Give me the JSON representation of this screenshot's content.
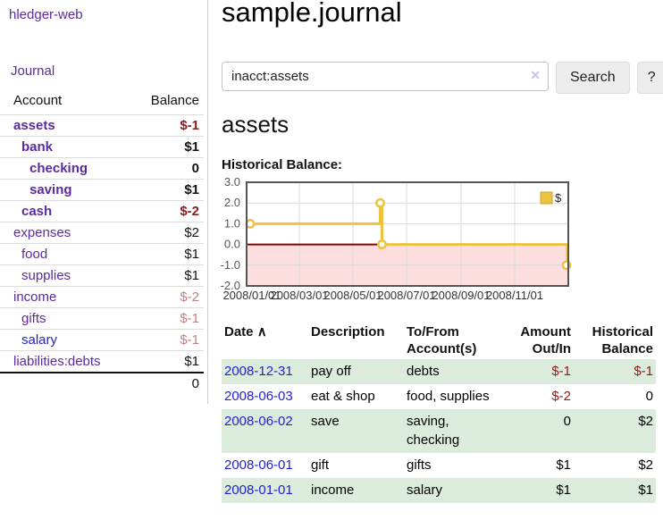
{
  "colors": {
    "link_purple": "#5b2a9d",
    "link_blue": "#2323cc",
    "negative_dark": "#8b1a1a",
    "negative_muted": "#c47e7e",
    "row_shade_green": "#dcecdc"
  },
  "sidebar": {
    "app_title": "hledger-web",
    "nav_journal": "Journal",
    "accounts": {
      "col_account": "Account",
      "col_balance": "Balance",
      "rows": [
        {
          "name": "assets",
          "indent": 0,
          "emph": true,
          "color": "purple",
          "balance": "$-1",
          "balance_color": "negdark"
        },
        {
          "name": "bank",
          "indent": 1,
          "emph": true,
          "color": "purple",
          "balance": "$1",
          "balance_color": "black"
        },
        {
          "name": "checking",
          "indent": 2,
          "emph": true,
          "color": "purple",
          "balance": "0",
          "balance_color": "black"
        },
        {
          "name": "saving",
          "indent": 2,
          "emph": true,
          "color": "purple",
          "balance": "$1",
          "balance_color": "black"
        },
        {
          "name": "cash",
          "indent": 1,
          "emph": true,
          "color": "purple",
          "balance": "$-2",
          "balance_color": "negdark"
        },
        {
          "name": "expenses",
          "indent": 0,
          "emph": false,
          "color": "purple",
          "balance": "$2",
          "balance_color": "black"
        },
        {
          "name": "food",
          "indent": 1,
          "emph": false,
          "color": "purple",
          "balance": "$1",
          "balance_color": "black"
        },
        {
          "name": "supplies",
          "indent": 1,
          "emph": false,
          "color": "purple",
          "balance": "$1",
          "balance_color": "black"
        },
        {
          "name": "income",
          "indent": 0,
          "emph": false,
          "color": "purple",
          "balance": "$-2",
          "balance_color": "negmuted"
        },
        {
          "name": "gifts",
          "indent": 1,
          "emph": false,
          "color": "purple",
          "balance": "$-1",
          "balance_color": "negmuted"
        },
        {
          "name": "salary",
          "indent": 1,
          "emph": false,
          "color": "blue",
          "balance": "$-1",
          "balance_color": "negmuted"
        },
        {
          "name": "liabilities:debts",
          "indent": 0,
          "emph": false,
          "color": "purple",
          "balance": "$1",
          "balance_color": "black"
        }
      ],
      "total": "0"
    }
  },
  "header": {
    "title": "sample.journal"
  },
  "search": {
    "value": "inacct:assets",
    "clear_icon": "✕",
    "search_button": "Search",
    "help_button": "?"
  },
  "account_page": {
    "heading": "assets",
    "chart_label": "Historical Balance:"
  },
  "chart_data": {
    "type": "line",
    "title": "Historical Balance:",
    "legend": [
      {
        "label": "$",
        "color": "#EDC240"
      }
    ],
    "x_start": "2008-01-01",
    "x_end": "2009-01-01",
    "xticks": [
      {
        "date": "2008-01-01",
        "label": "2008/01/01"
      },
      {
        "date": "2008-03-01",
        "label": "2008/03/01"
      },
      {
        "date": "2008-05-01",
        "label": "2008/05/01"
      },
      {
        "date": "2008-07-01",
        "label": "2008/07/01"
      },
      {
        "date": "2008-09-01",
        "label": "2008/09/01"
      },
      {
        "date": "2008-11-01",
        "label": "2008/11/01"
      }
    ],
    "yticks": [
      "3.0",
      "2.0",
      "1.0",
      "0.0",
      "-1.0",
      "-2.0"
    ],
    "ylim": [
      -2,
      3
    ],
    "series": [
      {
        "name": "$",
        "color": "#EDC240",
        "step": true,
        "points": [
          {
            "date": "2008-01-01",
            "value": 1
          },
          {
            "date": "2008-06-01",
            "value": 2
          },
          {
            "date": "2008-06-03",
            "value": 0
          },
          {
            "date": "2008-12-31",
            "value": -1
          }
        ]
      }
    ],
    "negative_fill": "#fcdede",
    "zero_line_color": "#8b0000",
    "grid_color": "#d9d9d9",
    "border_color": "#545454",
    "legend_box_border": "#c9a42e"
  },
  "transactions": {
    "sort_indicator": "∧",
    "columns": [
      {
        "label": "Date",
        "label2": ""
      },
      {
        "label": "Description",
        "label2": ""
      },
      {
        "label": "To/From",
        "label2": "Account(s)"
      },
      {
        "label": "Amount",
        "label2": "Out/In"
      },
      {
        "label": "Historical",
        "label2": "Balance"
      }
    ],
    "rows": [
      {
        "date": "2008-12-31",
        "description": "pay off",
        "to_from": "debts",
        "amount": "$-1",
        "amount_neg": true,
        "balance": "$-1",
        "balance_neg": true,
        "shaded": true
      },
      {
        "date": "2008-06-03",
        "description": "eat & shop",
        "to_from": "food, supplies",
        "amount": "$-2",
        "amount_neg": true,
        "balance": "0",
        "balance_neg": false,
        "shaded": false
      },
      {
        "date": "2008-06-02",
        "description": "save",
        "to_from": "saving, checking",
        "amount": "0",
        "amount_neg": false,
        "balance": "$2",
        "balance_neg": false,
        "shaded": true
      },
      {
        "date": "2008-06-01",
        "description": "gift",
        "to_from": "gifts",
        "amount": "$1",
        "amount_neg": false,
        "balance": "$2",
        "balance_neg": false,
        "shaded": false
      },
      {
        "date": "2008-01-01",
        "description": "income",
        "to_from": "salary",
        "amount": "$1",
        "amount_neg": false,
        "balance": "$1",
        "balance_neg": false,
        "shaded": true
      }
    ]
  }
}
